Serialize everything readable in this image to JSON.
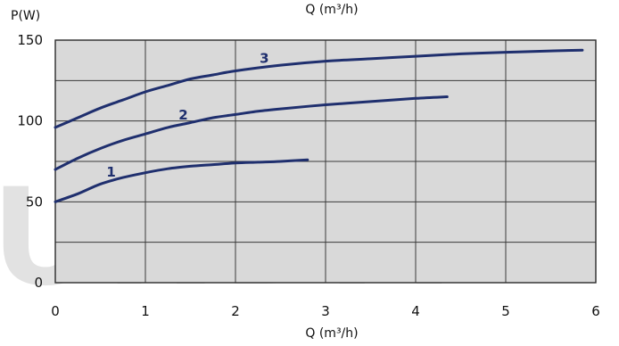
{
  "chart_data": {
    "type": "line",
    "title": "",
    "top_label": "Q (m³/h)",
    "xlabel": "Q (m³/h)",
    "ylabel": "P(W)",
    "xlim": [
      0,
      6
    ],
    "ylim": [
      0,
      150
    ],
    "x_ticks": [
      "0",
      "1",
      "2",
      "3",
      "4",
      "5",
      "6"
    ],
    "y_ticks": [
      "0",
      "50",
      "100",
      "150"
    ],
    "grid": true,
    "watermark": "UNDA",
    "line_color": "#1f2f6e",
    "series": [
      {
        "name": "1",
        "points": [
          [
            0,
            50
          ],
          [
            0.25,
            55
          ],
          [
            0.5,
            61
          ],
          [
            0.75,
            65
          ],
          [
            1.0,
            68
          ],
          [
            1.25,
            70.5
          ],
          [
            1.5,
            72
          ],
          [
            1.75,
            73
          ],
          [
            2.0,
            74
          ],
          [
            2.25,
            74.5
          ],
          [
            2.5,
            75
          ],
          [
            2.8,
            76
          ]
        ]
      },
      {
        "name": "2",
        "points": [
          [
            0,
            70
          ],
          [
            0.25,
            77
          ],
          [
            0.5,
            83
          ],
          [
            0.75,
            88
          ],
          [
            1.0,
            92
          ],
          [
            1.25,
            96
          ],
          [
            1.5,
            99
          ],
          [
            1.75,
            102
          ],
          [
            2.0,
            104
          ],
          [
            2.25,
            106
          ],
          [
            2.5,
            107.5
          ],
          [
            3.0,
            110
          ],
          [
            3.5,
            112
          ],
          [
            4.0,
            114
          ],
          [
            4.35,
            115
          ]
        ]
      },
      {
        "name": "3",
        "points": [
          [
            0,
            96
          ],
          [
            0.25,
            102
          ],
          [
            0.5,
            108
          ],
          [
            0.75,
            113
          ],
          [
            1.0,
            118
          ],
          [
            1.25,
            122
          ],
          [
            1.5,
            126
          ],
          [
            1.75,
            128.5
          ],
          [
            2.0,
            131
          ],
          [
            2.5,
            134.5
          ],
          [
            3.0,
            137
          ],
          [
            3.5,
            138.5
          ],
          [
            4.0,
            140
          ],
          [
            4.5,
            141.5
          ],
          [
            5.0,
            142.5
          ],
          [
            5.5,
            143.3
          ],
          [
            5.85,
            143.8
          ]
        ]
      }
    ]
  }
}
